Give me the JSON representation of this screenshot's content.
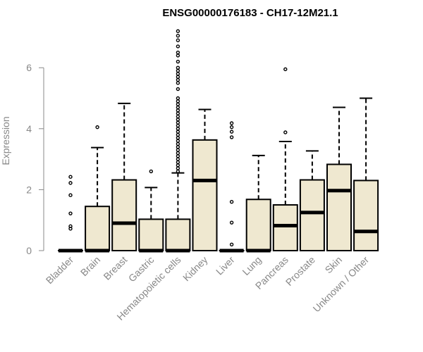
{
  "chart_data": {
    "type": "box",
    "title": "ENSG00000176183 - CH17-12M21.1",
    "ylabel": "Expression",
    "xlabel": "",
    "ylim": [
      -0.15,
      7.2
    ],
    "yticks": [
      0,
      2,
      4,
      6
    ],
    "box_fill": "#efe8d0",
    "stroke": "#000000",
    "categories": [
      "Bladder",
      "Brain",
      "Breast",
      "Gastric",
      "Hematopoietic cells",
      "Kidney",
      "Liver",
      "Lung",
      "Pancreas",
      "Prostate",
      "Skin",
      "Unknown / Other"
    ],
    "boxes": [
      {
        "category": "Bladder",
        "q1": 0,
        "median": 0,
        "q3": 0,
        "whisker_low": 0,
        "whisker_high": 0,
        "outliers": [
          0.72,
          0.8,
          1.22,
          1.82,
          2.22,
          2.42
        ]
      },
      {
        "category": "Brain",
        "q1": 0,
        "median": 0,
        "q3": 1.45,
        "whisker_low": 0,
        "whisker_high": 3.38,
        "outliers": [
          4.05
        ]
      },
      {
        "category": "Breast",
        "q1": 0,
        "median": 0.9,
        "q3": 2.32,
        "whisker_low": 0,
        "whisker_high": 4.83,
        "outliers": []
      },
      {
        "category": "Gastric",
        "q1": 0,
        "median": 0,
        "q3": 1.03,
        "whisker_low": 0,
        "whisker_high": 2.07,
        "outliers": [
          2.6
        ]
      },
      {
        "category": "Hematopoietic cells",
        "q1": 0,
        "median": 0,
        "q3": 1.03,
        "whisker_low": 0,
        "whisker_high": 2.55,
        "outliers": [
          2.6,
          2.7,
          2.8,
          2.9,
          3.0,
          3.1,
          3.2,
          3.3,
          3.4,
          3.5,
          3.6,
          3.7,
          3.8,
          3.9,
          4.0,
          4.1,
          4.2,
          4.3,
          4.4,
          4.5,
          4.6,
          4.7,
          4.8,
          4.9,
          5.0,
          5.3,
          5.5,
          5.6,
          5.7,
          5.8,
          5.9,
          6.0,
          6.2,
          6.4,
          6.5,
          6.7,
          6.9,
          7.05,
          7.2
        ]
      },
      {
        "category": "Kidney",
        "q1": 0,
        "median": 2.3,
        "q3": 3.63,
        "whisker_low": 0,
        "whisker_high": 4.63,
        "outliers": []
      },
      {
        "category": "Liver",
        "q1": 0,
        "median": 0,
        "q3": 0,
        "whisker_low": 0,
        "whisker_high": 0,
        "outliers": [
          0.2,
          0.92,
          1.6,
          3.72,
          3.9,
          4.05,
          4.18
        ]
      },
      {
        "category": "Lung",
        "q1": 0,
        "median": 0,
        "q3": 1.68,
        "whisker_low": 0,
        "whisker_high": 3.12,
        "outliers": []
      },
      {
        "category": "Pancreas",
        "q1": 0,
        "median": 0.82,
        "q3": 1.5,
        "whisker_low": 0,
        "whisker_high": 3.58,
        "outliers": [
          3.88,
          5.95
        ]
      },
      {
        "category": "Prostate",
        "q1": 0,
        "median": 1.25,
        "q3": 2.32,
        "whisker_low": 0,
        "whisker_high": 3.27,
        "outliers": []
      },
      {
        "category": "Skin",
        "q1": 0,
        "median": 1.97,
        "q3": 2.83,
        "whisker_low": 0,
        "whisker_high": 4.7,
        "outliers": []
      },
      {
        "category": "Unknown / Other",
        "q1": 0,
        "median": 0.63,
        "q3": 2.3,
        "whisker_low": 0,
        "whisker_high": 5.0,
        "outliers": []
      }
    ]
  }
}
